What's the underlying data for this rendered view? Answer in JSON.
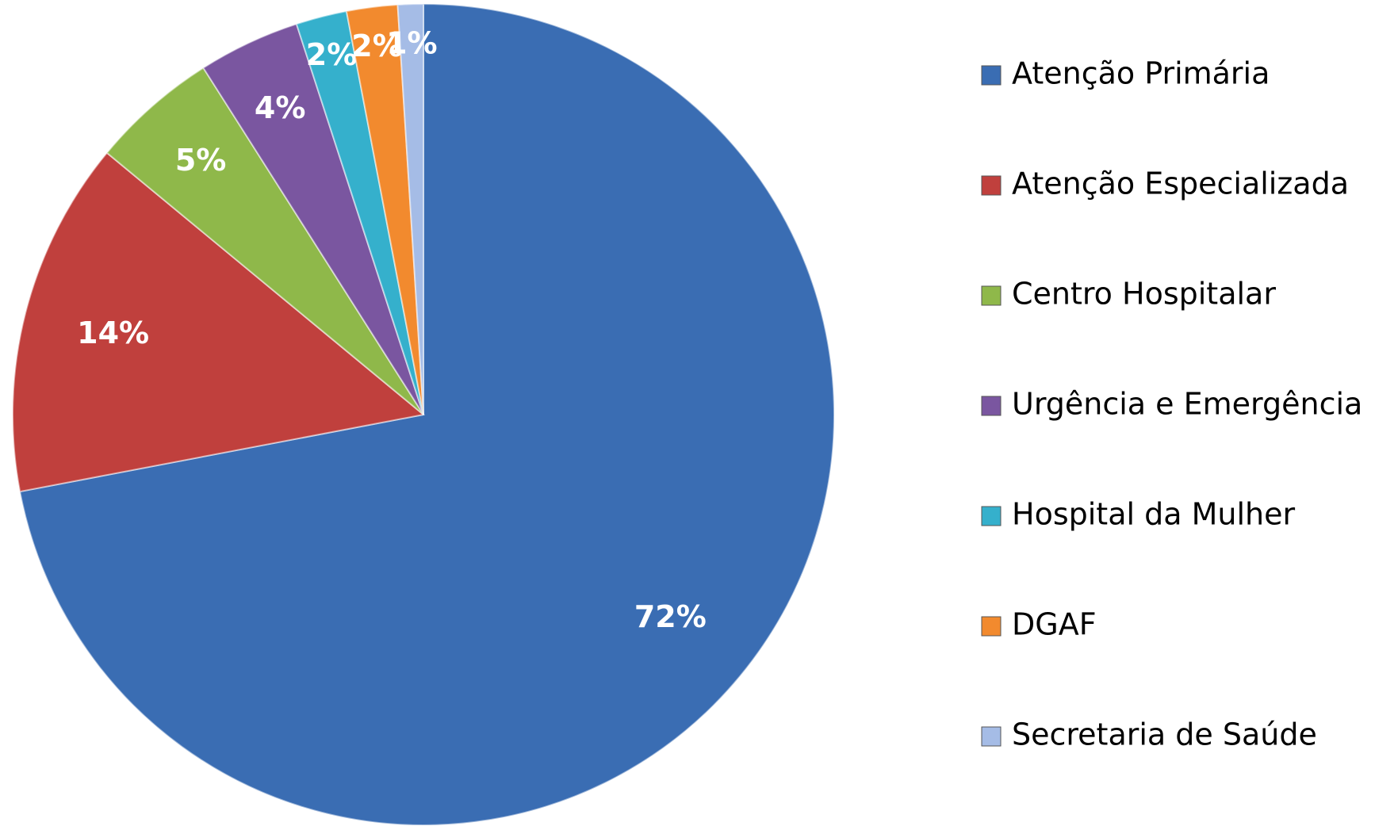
{
  "chart_data": {
    "type": "pie",
    "categories": [
      "Atenção Primária",
      "Atenção Especializada",
      "Centro Hospitalar",
      "Urgência e Emergência",
      "Hospital da Mulher",
      "DGAF",
      "Secretaria de Saúde"
    ],
    "values": [
      72,
      14,
      5,
      4,
      2,
      2,
      1
    ],
    "value_labels": [
      "72%",
      "14%",
      "5%",
      "4%",
      "2%",
      "2%",
      "1%"
    ],
    "colors": [
      "#3a6db3",
      "#c0403d",
      "#8fb84a",
      "#7a56a0",
      "#35b0cc",
      "#f28a2e",
      "#a5bce6"
    ],
    "legend": "right"
  }
}
